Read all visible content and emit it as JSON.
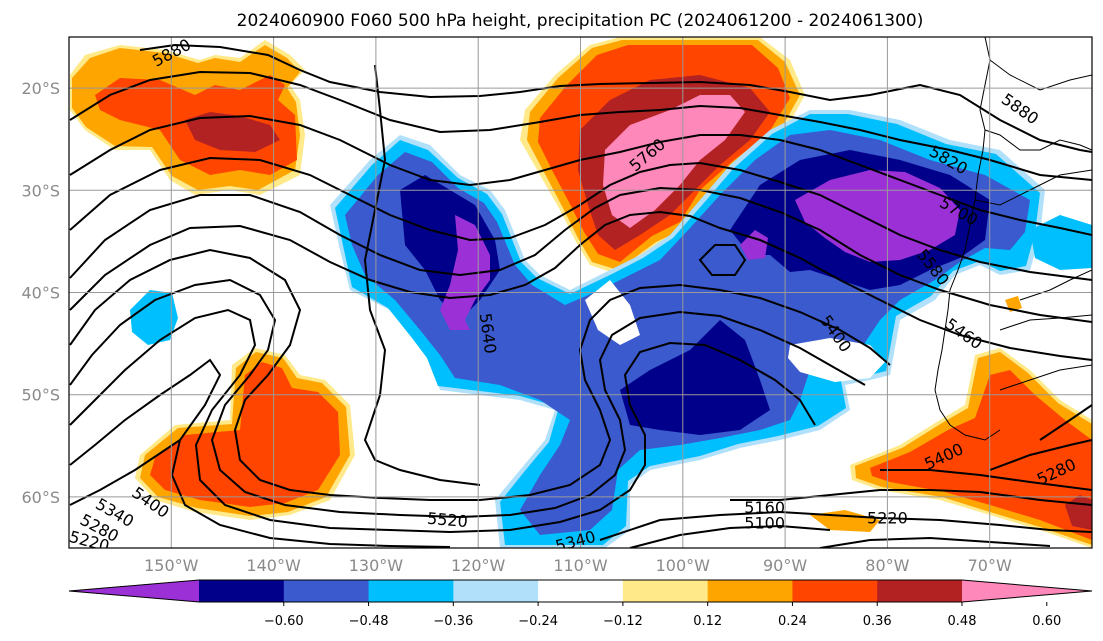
{
  "map": {
    "title": "2024060900 F060 500 hPa height, precipitation PC (2024061200 - 2024061300)",
    "lat_range": [
      -65,
      -15
    ],
    "lon_range": [
      -160,
      -60
    ],
    "lat_ticks": [
      {
        "value": -20,
        "label": "20°S"
      },
      {
        "value": -30,
        "label": "30°S"
      },
      {
        "value": -40,
        "label": "40°S"
      },
      {
        "value": -50,
        "label": "50°S"
      },
      {
        "value": -60,
        "label": "60°S"
      }
    ],
    "lon_ticks": [
      {
        "value": -150,
        "label": "150°W"
      },
      {
        "value": -140,
        "label": "140°W"
      },
      {
        "value": -130,
        "label": "130°W"
      },
      {
        "value": -120,
        "label": "120°W"
      },
      {
        "value": -110,
        "label": "110°W"
      },
      {
        "value": -100,
        "label": "100°W"
      },
      {
        "value": -90,
        "label": "90°W"
      },
      {
        "value": -80,
        "label": "80°W"
      },
      {
        "value": -70,
        "label": "70°W"
      }
    ],
    "contour_labels": [
      {
        "text": "5880",
        "lon": -150,
        "lat": -16.5,
        "rot": -28
      },
      {
        "text": "5880",
        "lon": -67,
        "lat": -22,
        "rot": 35
      },
      {
        "text": "5820",
        "lon": -74,
        "lat": -27,
        "rot": 30
      },
      {
        "text": "5760",
        "lon": -103.5,
        "lat": -26.5,
        "rot": -40
      },
      {
        "text": "5700",
        "lon": -73,
        "lat": -32,
        "rot": 30
      },
      {
        "text": "5580",
        "lon": -75.5,
        "lat": -37.5,
        "rot": 52
      },
      {
        "text": "5640",
        "lon": -119,
        "lat": -44,
        "rot": 82
      },
      {
        "text": "5460",
        "lon": -72.5,
        "lat": -44,
        "rot": 35
      },
      {
        "text": "5400",
        "lon": -85,
        "lat": -44,
        "rot": 55
      },
      {
        "text": "5400",
        "lon": -74.5,
        "lat": -56,
        "rot": -25
      },
      {
        "text": "5400",
        "lon": -152,
        "lat": -60.5,
        "rot": 35
      },
      {
        "text": "5340",
        "lon": -155.5,
        "lat": -61.5,
        "rot": 30
      },
      {
        "text": "5280",
        "lon": -157,
        "lat": -63,
        "rot": 28
      },
      {
        "text": "5220",
        "lon": -158,
        "lat": -64.3,
        "rot": 15
      },
      {
        "text": "5520",
        "lon": -123,
        "lat": -62.2,
        "rot": 5
      },
      {
        "text": "5340",
        "lon": -110.5,
        "lat": -64.3,
        "rot": -15
      },
      {
        "text": "5160",
        "lon": -92,
        "lat": -61,
        "rot": 0
      },
      {
        "text": "5100",
        "lon": -92,
        "lat": -62.5,
        "rot": 0
      },
      {
        "text": "5220",
        "lon": -80,
        "lat": -62,
        "rot": 0
      },
      {
        "text": "5280",
        "lon": -63.5,
        "lat": -57.5,
        "rot": -25
      }
    ]
  },
  "colorbar": {
    "colors": [
      "#9b30d6",
      "#00008b",
      "#3a5acd",
      "#00bfff",
      "#b0e0fa",
      "#ffffff",
      "#ffe989",
      "#ffa500",
      "#ff4500",
      "#b22222",
      "#ff88bb"
    ],
    "ticks": [
      "−0.60",
      "−0.48",
      "−0.36",
      "−0.24",
      "−0.12",
      "0.12",
      "0.24",
      "0.36",
      "0.48",
      "0.60"
    ]
  }
}
